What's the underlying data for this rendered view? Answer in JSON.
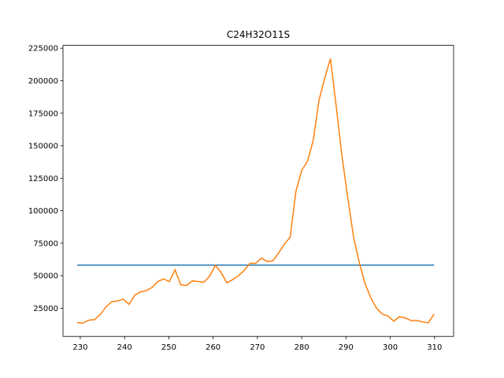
{
  "chart_data": {
    "type": "line",
    "title": "C24H32O11S",
    "xlim": [
      226.1,
      314.3
    ],
    "ylim": [
      3300,
      227200
    ],
    "xticks": [
      230,
      240,
      250,
      260,
      270,
      280,
      290,
      300,
      310
    ],
    "yticks": [
      25000,
      50000,
      75000,
      100000,
      125000,
      150000,
      175000,
      200000,
      225000
    ],
    "series": [
      {
        "color": "#1f77b4",
        "x": [
          229.3,
          309.9
        ],
        "values": [
          58200,
          58200
        ]
      },
      {
        "color": "#ff7f0e",
        "x": [
          229.3,
          230.6,
          231.9,
          233.2,
          234.5,
          235.8,
          237.1,
          238.4,
          239.7,
          241.0,
          242.3,
          243.6,
          244.9,
          246.2,
          247.5,
          248.8,
          250.1,
          251.4,
          252.7,
          254.0,
          255.3,
          256.6,
          257.9,
          259.2,
          260.5,
          261.8,
          263.1,
          264.4,
          265.7,
          267.0,
          268.3,
          269.6,
          270.9,
          272.2,
          273.5,
          274.8,
          276.1,
          277.4,
          278.7,
          280.0,
          281.3,
          282.6,
          283.9,
          285.2,
          286.5,
          287.8,
          289.1,
          290.4,
          291.7,
          293.0,
          294.3,
          295.6,
          296.9,
          298.2,
          299.5,
          300.8,
          302.1,
          303.4,
          304.7,
          306.0,
          307.3,
          308.6,
          309.9
        ],
        "values": [
          14000,
          13500,
          15800,
          16200,
          20000,
          26000,
          30000,
          30500,
          32000,
          28000,
          35000,
          37500,
          38500,
          41000,
          45500,
          47500,
          45500,
          54500,
          43000,
          42500,
          46000,
          45500,
          45000,
          49500,
          58000,
          52500,
          44500,
          47000,
          50000,
          54000,
          59500,
          59500,
          63500,
          61000,
          61500,
          67500,
          74500,
          79500,
          115000,
          131000,
          138000,
          154000,
          185000,
          202000,
          217000,
          180000,
          142000,
          110000,
          80000,
          60000,
          44000,
          33000,
          25000,
          20500,
          19000,
          15000,
          18500,
          17500,
          15500,
          15500,
          14500,
          13800,
          20500
        ]
      }
    ]
  }
}
